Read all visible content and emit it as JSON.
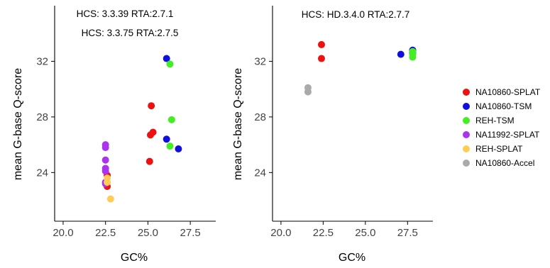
{
  "chart_data": [
    {
      "type": "scatter",
      "annotations": [
        "HCS: 3.3.39 RTA:2.7.1",
        "HCS: 3.3.75 RTA:2.7.5"
      ],
      "xlabel": "GC%",
      "ylabel": "mean G-base Q-score",
      "xlim": [
        19.5,
        29.0
      ],
      "ylim": [
        20.5,
        36.0
      ],
      "xticks": [
        20.0,
        22.5,
        25.0,
        27.5
      ],
      "xtick_labels": [
        "20.0",
        "22.5",
        "25.0",
        "27.5"
      ],
      "yticks": [
        24,
        28,
        32
      ],
      "ytick_labels": [
        "24",
        "28",
        "32"
      ],
      "series": [
        {
          "name": "NA10860-SPLAT",
          "color": "#ee1111",
          "points": [
            [
              22.6,
              23.8
            ],
            [
              22.6,
              23.0
            ],
            [
              25.1,
              24.8
            ],
            [
              25.15,
              26.7
            ],
            [
              25.3,
              26.9
            ],
            [
              25.2,
              28.8
            ]
          ]
        },
        {
          "name": "NA10860-TSM",
          "color": "#1010dd",
          "points": [
            [
              26.1,
              32.2
            ],
            [
              26.1,
              26.4
            ],
            [
              26.8,
              25.7
            ]
          ]
        },
        {
          "name": "REH-TSM",
          "color": "#44ee22",
          "points": [
            [
              26.3,
              31.8
            ],
            [
              26.4,
              27.8
            ],
            [
              26.3,
              25.9
            ]
          ]
        },
        {
          "name": "NA11992-SPLAT",
          "color": "#aa33ee",
          "points": [
            [
              22.5,
              26.0
            ],
            [
              22.5,
              25.8
            ],
            [
              22.5,
              24.9
            ],
            [
              22.5,
              24.3
            ],
            [
              22.5,
              24.1
            ],
            [
              22.5,
              23.3
            ],
            [
              22.5,
              23.2
            ]
          ]
        },
        {
          "name": "REH-SPLAT",
          "color": "#ffcc55",
          "points": [
            [
              22.6,
              23.6
            ],
            [
              22.6,
              23.3
            ],
            [
              22.8,
              22.1
            ]
          ]
        }
      ]
    },
    {
      "type": "scatter",
      "annotations": [
        "HCS: HD.3.4.0 RTA:2.7.7"
      ],
      "xlabel": "GC%",
      "ylabel": "mean G-base Q-score",
      "xlim": [
        19.5,
        29.0
      ],
      "ylim": [
        20.5,
        36.0
      ],
      "xticks": [
        20.0,
        22.5,
        25.0,
        27.5
      ],
      "xtick_labels": [
        "20.0",
        "22.5",
        "25.0",
        "27.5"
      ],
      "yticks": [
        24,
        28,
        32
      ],
      "ytick_labels": [
        "24",
        "28",
        "32"
      ],
      "series": [
        {
          "name": "NA10860-SPLAT",
          "color": "#ee1111",
          "points": [
            [
              22.4,
              33.2
            ],
            [
              22.4,
              32.2
            ]
          ]
        },
        {
          "name": "NA10860-TSM",
          "color": "#1010dd",
          "points": [
            [
              27.1,
              32.5
            ],
            [
              27.8,
              32.8
            ],
            [
              27.8,
              32.6
            ]
          ]
        },
        {
          "name": "REH-TSM",
          "color": "#44ee22",
          "points": [
            [
              27.8,
              32.7
            ],
            [
              27.8,
              32.5
            ],
            [
              27.8,
              32.3
            ]
          ]
        },
        {
          "name": "NA10860-Accel",
          "color": "#aaaaaa",
          "points": [
            [
              21.6,
              30.1
            ],
            [
              21.6,
              29.8
            ]
          ]
        }
      ]
    }
  ],
  "legend": [
    {
      "name": "NA10860-SPLAT",
      "color": "#ee1111"
    },
    {
      "name": "NA10860-TSM",
      "color": "#1010dd"
    },
    {
      "name": "REH-TSM",
      "color": "#44ee22"
    },
    {
      "name": "NA11992-SPLAT",
      "color": "#aa33ee"
    },
    {
      "name": "REH-SPLAT",
      "color": "#ffcc55"
    },
    {
      "name": "NA10860-Accel",
      "color": "#aaaaaa"
    }
  ],
  "legend_position": "right"
}
